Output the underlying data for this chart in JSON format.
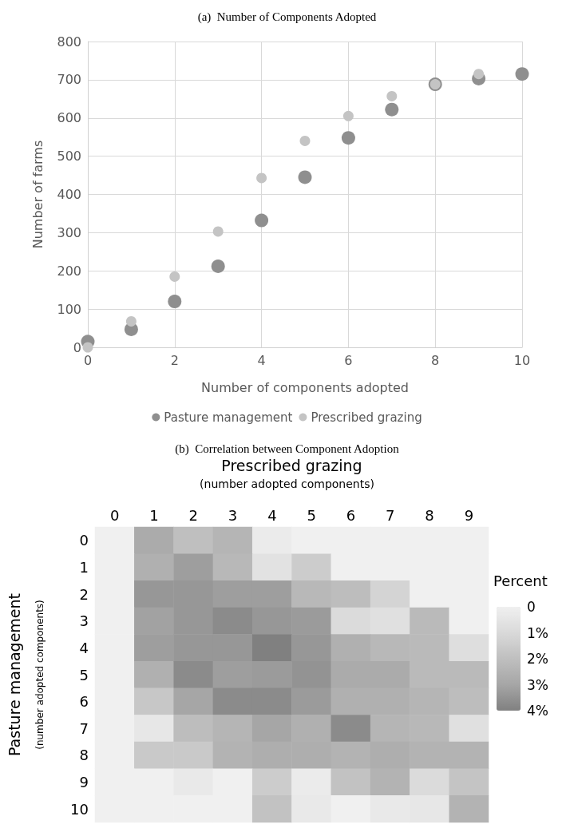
{
  "chart_data": [
    {
      "type": "scatter",
      "title": "(a)  Number of Components Adopted",
      "xlabel": "Number of components adopted",
      "ylabel": "Number of farms",
      "xlim": [
        0,
        10
      ],
      "xticks": [
        0,
        2,
        4,
        6,
        8,
        10
      ],
      "ylim": [
        0,
        800
      ],
      "yticks": [
        0,
        100,
        200,
        300,
        400,
        500,
        600,
        700,
        800
      ],
      "grid": true,
      "legend": "bottom",
      "marker": "circle",
      "series": [
        {
          "name": "Pasture management",
          "color": "#8f8f8f",
          "x": [
            0,
            1,
            2,
            3,
            4,
            5,
            6,
            7,
            8,
            9,
            10
          ],
          "values": [
            15,
            47,
            120,
            212,
            332,
            445,
            548,
            622,
            688,
            703,
            715
          ]
        },
        {
          "name": "Prescribed grazing",
          "color": "#c4c4c4",
          "x": [
            0,
            1,
            2,
            3,
            4,
            5,
            6,
            7,
            8,
            9
          ],
          "values": [
            0,
            68,
            185,
            303,
            443,
            540,
            605,
            657,
            688,
            715
          ]
        }
      ]
    },
    {
      "type": "heatmap",
      "title": "(b)  Correlation between Component Adoption",
      "xlabel": "Prescribed grazing",
      "ylabel": "Pasture management",
      "annotations": [
        "(number adopted components)",
        "(number adopted components)"
      ],
      "clabel": "Percent",
      "categories": [
        "0",
        "1",
        "2",
        "3",
        "4",
        "5",
        "6",
        "7",
        "8",
        "9"
      ],
      "y_categories": [
        "0",
        "1",
        "2",
        "3",
        "4",
        "5",
        "6",
        "7",
        "8",
        "9",
        "10"
      ],
      "clim": [
        0,
        4
      ],
      "cticks": [
        0,
        {
          "value": 1,
          "label": "1%"
        },
        {
          "value": 2,
          "label": "2%"
        },
        {
          "value": 3,
          "label": "3%"
        },
        {
          "value": 4,
          "label": "4%"
        }
      ],
      "cells": [
        [
          0,
          2.8,
          2.0,
          2.4,
          0.2,
          0,
          0,
          0,
          0,
          0
        ],
        [
          0,
          2.6,
          3.2,
          2.3,
          0.6,
          1.5,
          0,
          0,
          0,
          0
        ],
        [
          0,
          3.4,
          3.4,
          3.2,
          3.2,
          2.3,
          2.1,
          1.2,
          0,
          0
        ],
        [
          0,
          3.1,
          3.4,
          3.7,
          3.4,
          3.3,
          0.9,
          0.7,
          2.2,
          0
        ],
        [
          0,
          3.2,
          3.4,
          3.4,
          4.0,
          3.4,
          2.6,
          2.3,
          2.2,
          0.8
        ],
        [
          0,
          2.6,
          3.7,
          3.2,
          3.3,
          3.5,
          2.8,
          2.8,
          2.2,
          2.2
        ],
        [
          0,
          1.7,
          3.0,
          3.7,
          3.7,
          3.3,
          2.6,
          2.6,
          2.4,
          2.1
        ],
        [
          0,
          0.4,
          2.1,
          2.4,
          3.0,
          2.6,
          3.7,
          2.4,
          2.3,
          0.7
        ],
        [
          0,
          1.6,
          1.6,
          2.5,
          2.7,
          2.7,
          2.5,
          2.7,
          2.5,
          2.5
        ],
        [
          0,
          0,
          0.3,
          0,
          1.5,
          0.2,
          1.9,
          2.5,
          0.9,
          1.8
        ],
        [
          0,
          0,
          0,
          0,
          1.9,
          0.3,
          0,
          0.3,
          0.4,
          2.5
        ]
      ]
    }
  ]
}
